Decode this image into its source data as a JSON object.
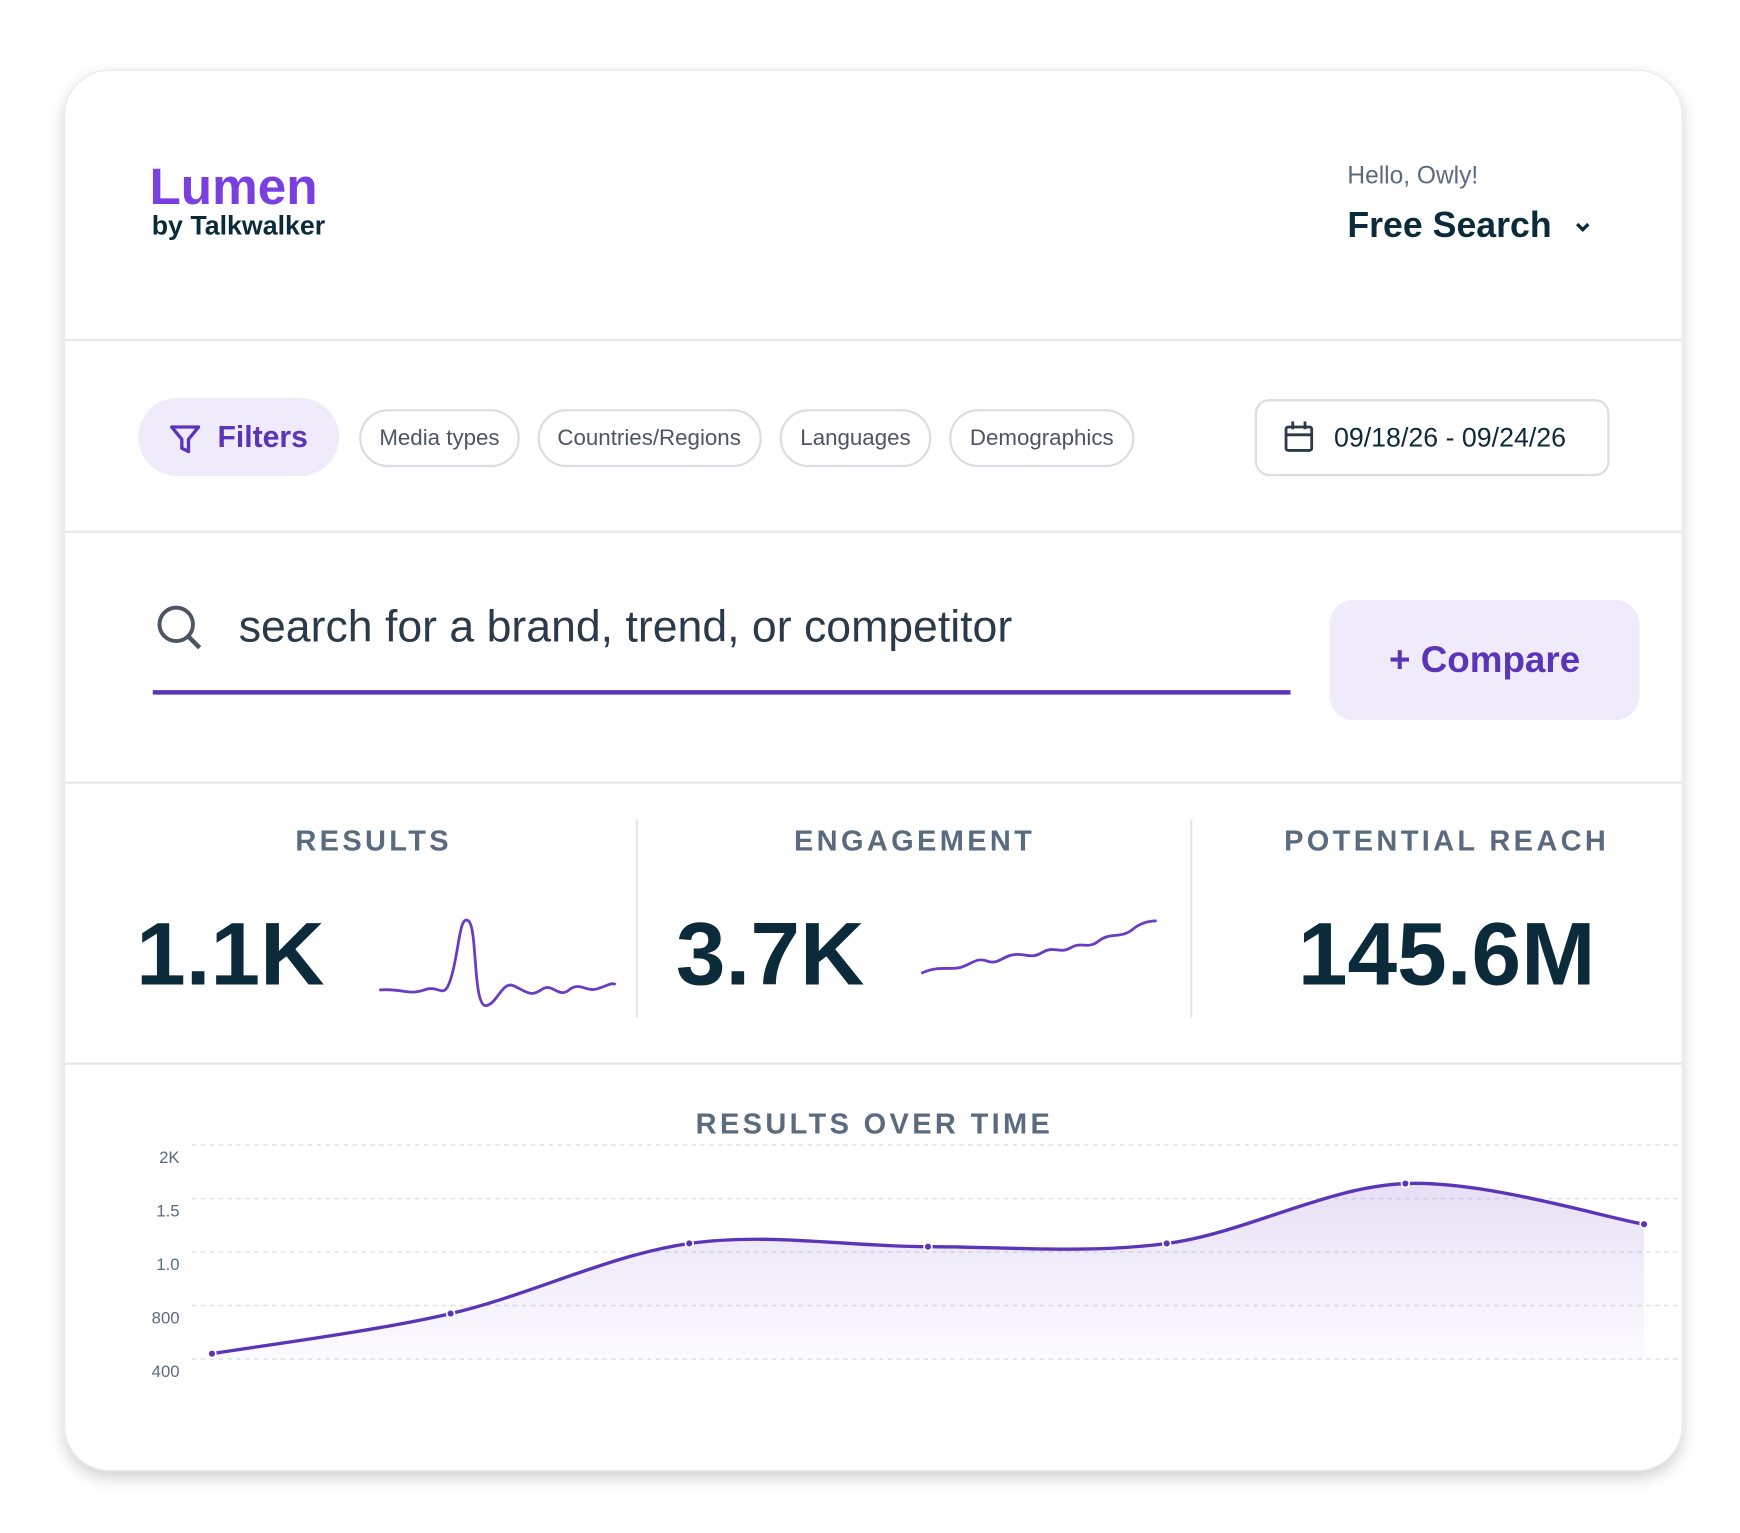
{
  "header": {
    "logo": "Lumen",
    "logo_sub": "by Talkwalker",
    "greeting": "Hello, Owly!",
    "search_mode": "Free Search"
  },
  "filters": {
    "button": "Filters",
    "chips": [
      "Media types",
      "Countries/Regions",
      "Languages",
      "Demographics"
    ],
    "date_range": "09/18/26 - 09/24/26"
  },
  "search": {
    "placeholder": "search for a brand, trend, or competitor",
    "compare": "+ Compare"
  },
  "metrics": [
    {
      "label": "RESULTS",
      "value": "1.1K"
    },
    {
      "label": "ENGAGEMENT",
      "value": "3.7K"
    },
    {
      "label": "POTENTIAL REACH",
      "value": "145.6M"
    }
  ],
  "chart_data": {
    "type": "area",
    "title": "RESULTS OVER TIME",
    "categories": [
      null,
      null,
      null,
      null,
      null,
      null,
      null
    ],
    "values": [
      440,
      740,
      1080,
      1050,
      1080,
      1640,
      1260
    ],
    "color": "#5b35b8",
    "yticks": [
      {
        "value": 2000,
        "label": "2K"
      },
      {
        "value": 1500,
        "label": "1.5"
      },
      {
        "value": 1000,
        "label": "1.0"
      },
      800,
      400
    ],
    "ylim": [
      400,
      2000
    ],
    "grid": true
  }
}
